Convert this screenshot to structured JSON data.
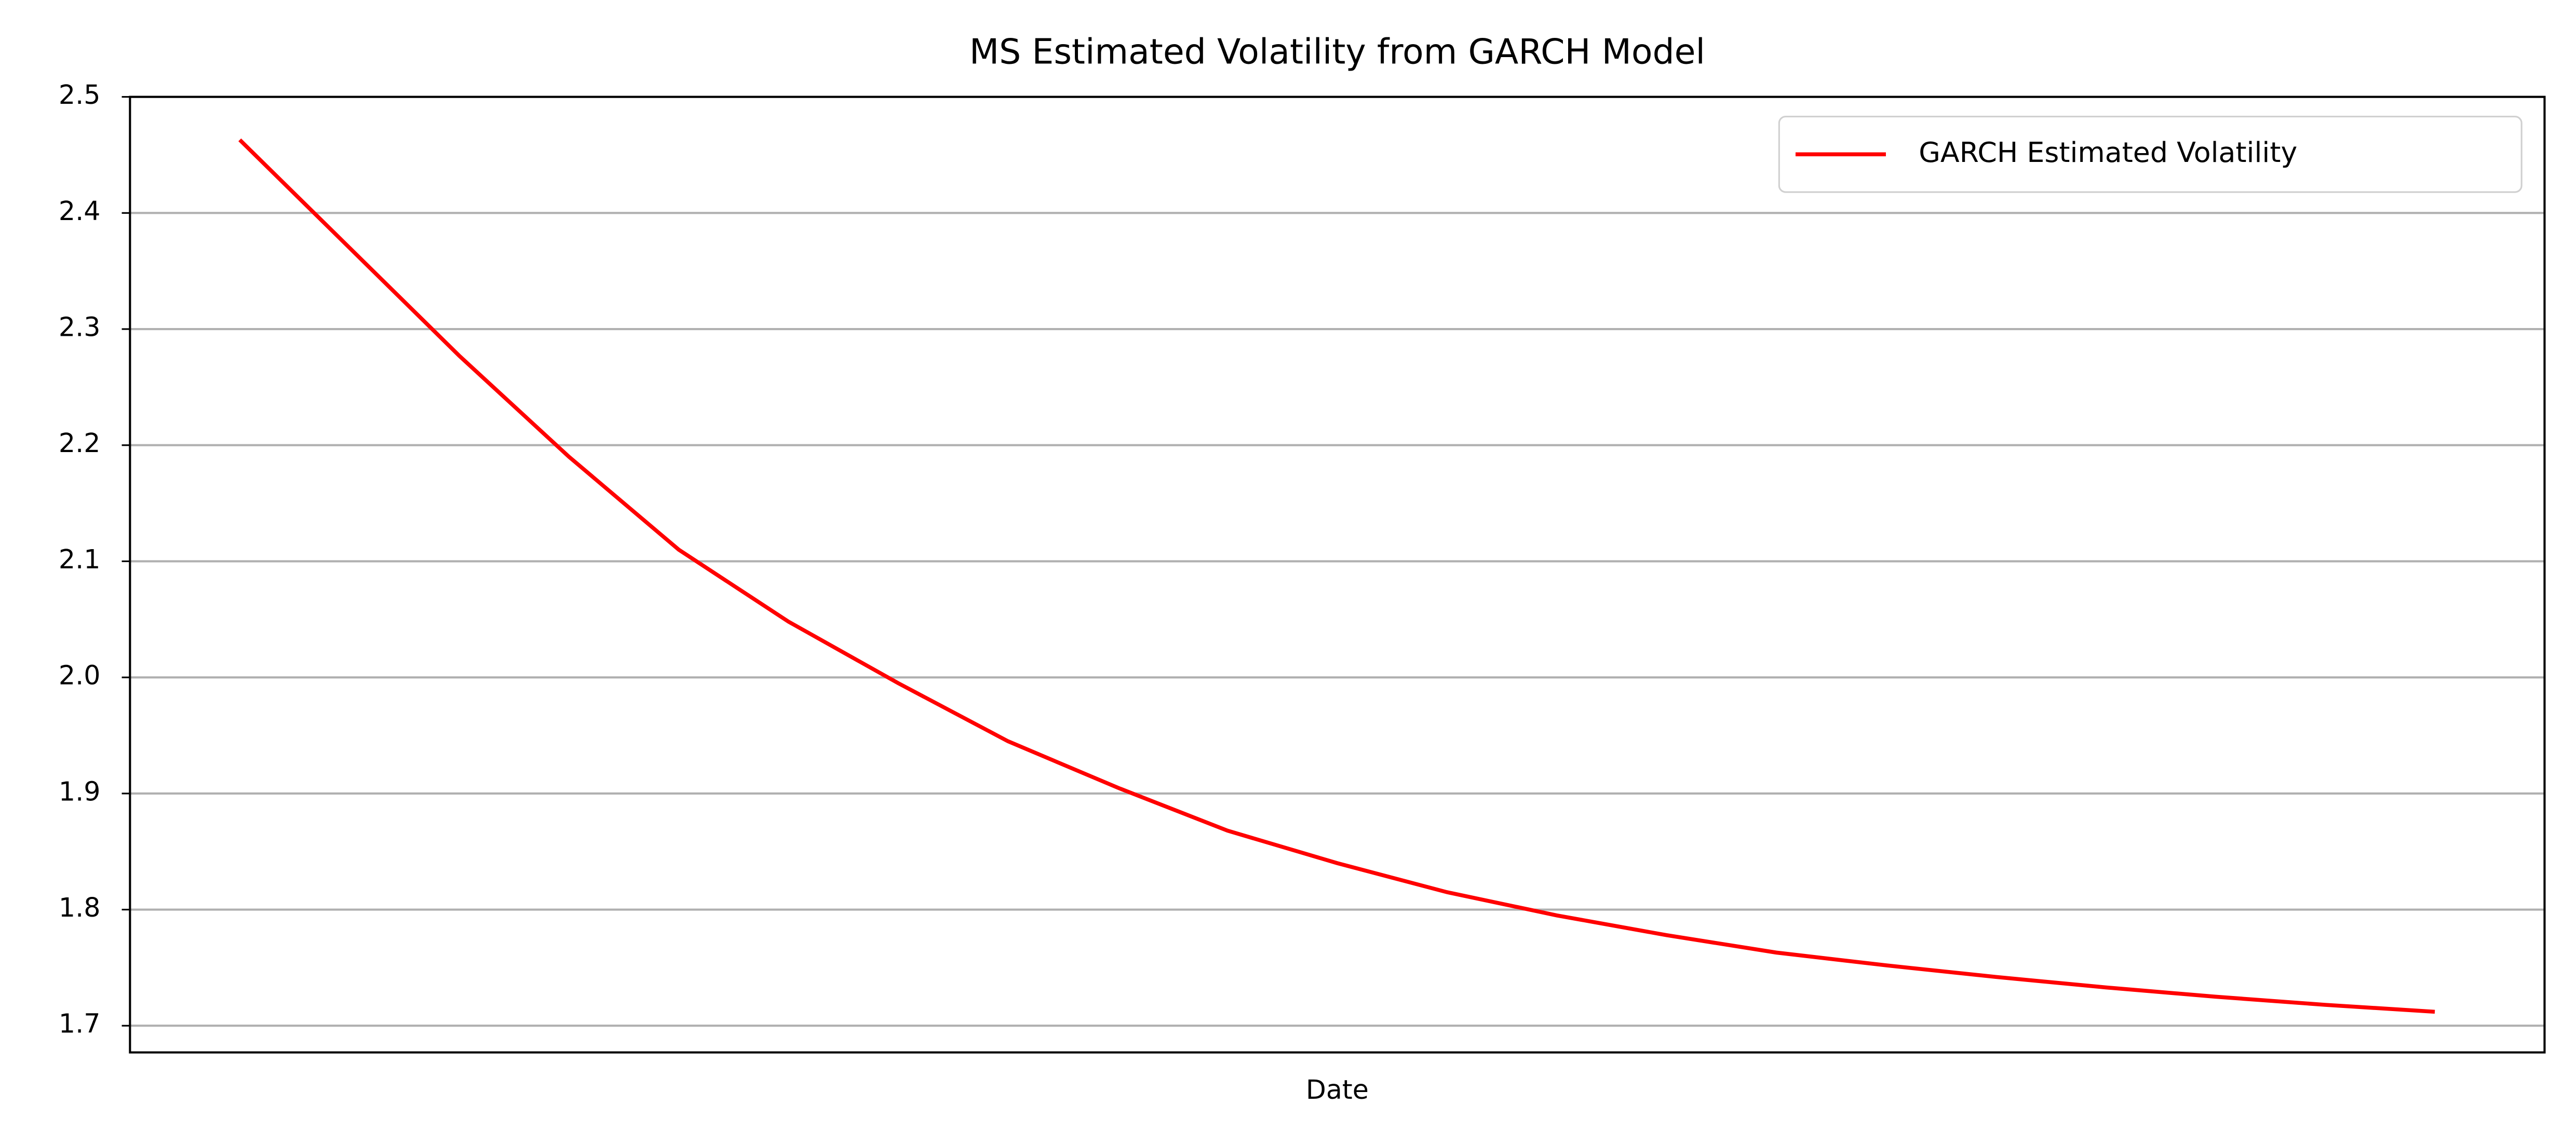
{
  "chart_data": {
    "type": "line",
    "title": "MS Estimated Volatility from GARCH Model",
    "xlabel": "Date",
    "series": [
      {
        "name": "GARCH Estimated Volatility",
        "color": "#ff0000",
        "values": [
          2.463,
          2.37,
          2.277,
          2.19,
          2.11,
          2.048,
          1.995,
          1.945,
          1.905,
          1.868,
          1.84,
          1.815,
          1.795,
          1.778,
          1.763,
          1.752,
          1.742,
          1.733,
          1.725,
          1.718,
          1.712
        ]
      }
    ],
    "ylim": [
      1.677,
      2.5
    ],
    "yticks": [
      1.7,
      1.8,
      1.9,
      2.0,
      2.1,
      2.2,
      2.3,
      2.4,
      2.5
    ],
    "grid": true,
    "legend": "upper right"
  }
}
